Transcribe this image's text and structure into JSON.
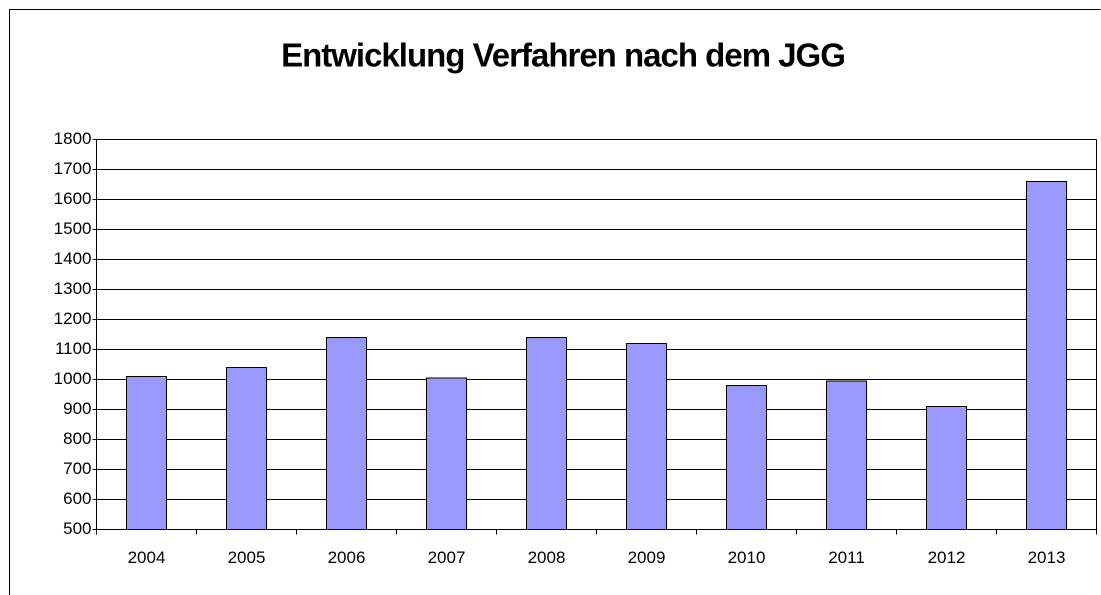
{
  "chart_data": {
    "type": "bar",
    "title": "Entwicklung Verfahren nach dem JGG",
    "categories": [
      "2004",
      "2005",
      "2006",
      "2007",
      "2008",
      "2009",
      "2010",
      "2011",
      "2012",
      "2013"
    ],
    "values": [
      1010,
      1040,
      1140,
      1005,
      1140,
      1120,
      980,
      995,
      910,
      1660
    ],
    "color": "#9999ff",
    "ylim": [
      500,
      1800
    ],
    "yticks": [
      500,
      600,
      700,
      800,
      900,
      1000,
      1100,
      1200,
      1300,
      1400,
      1500,
      1600,
      1700,
      1800
    ],
    "grid": true
  }
}
